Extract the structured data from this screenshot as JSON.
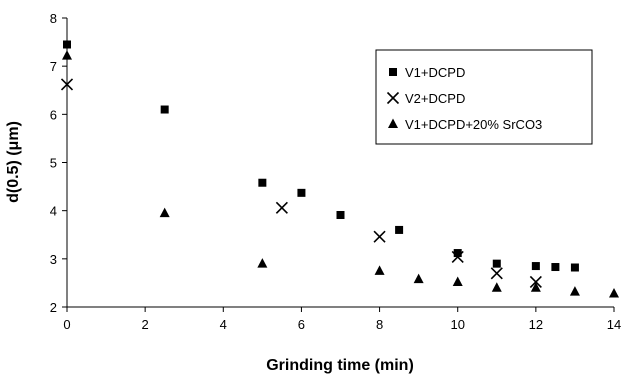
{
  "chart_data": {
    "type": "scatter",
    "xlabel": "Grinding time (min)",
    "ylabel": "d(0.5) (μm)",
    "xlim": [
      0,
      14
    ],
    "ylim": [
      2,
      8
    ],
    "x_ticks": [
      0,
      2,
      4,
      6,
      8,
      10,
      12,
      14
    ],
    "y_ticks": [
      2,
      3,
      4,
      5,
      6,
      7,
      8
    ],
    "grid": false,
    "legend_position": "top-right",
    "series": [
      {
        "name": "V1+DCPD",
        "marker": "square",
        "color": "#000000",
        "points": [
          [
            0,
            7.45
          ],
          [
            2.5,
            6.1
          ],
          [
            5,
            4.58
          ],
          [
            6,
            4.37
          ],
          [
            7,
            3.91
          ],
          [
            8.5,
            3.6
          ],
          [
            10,
            3.12
          ],
          [
            11,
            2.9
          ],
          [
            12,
            2.85
          ],
          [
            12.5,
            2.83
          ],
          [
            13,
            2.82
          ]
        ]
      },
      {
        "name": "V2+DCPD",
        "marker": "cross",
        "color": "#000000",
        "points": [
          [
            0,
            6.62
          ],
          [
            5.5,
            4.06
          ],
          [
            8,
            3.46
          ],
          [
            10,
            3.04
          ],
          [
            11,
            2.7
          ],
          [
            12,
            2.52
          ]
        ]
      },
      {
        "name": "V1+DCPD+20% SrCO3",
        "marker": "triangle",
        "color": "#000000",
        "points": [
          [
            0,
            7.22
          ],
          [
            2.5,
            3.95
          ],
          [
            5,
            2.9
          ],
          [
            8,
            2.75
          ],
          [
            9,
            2.58
          ],
          [
            10,
            2.52
          ],
          [
            11,
            2.4
          ],
          [
            12,
            2.4
          ],
          [
            13,
            2.32
          ],
          [
            14,
            2.28
          ]
        ]
      }
    ]
  }
}
